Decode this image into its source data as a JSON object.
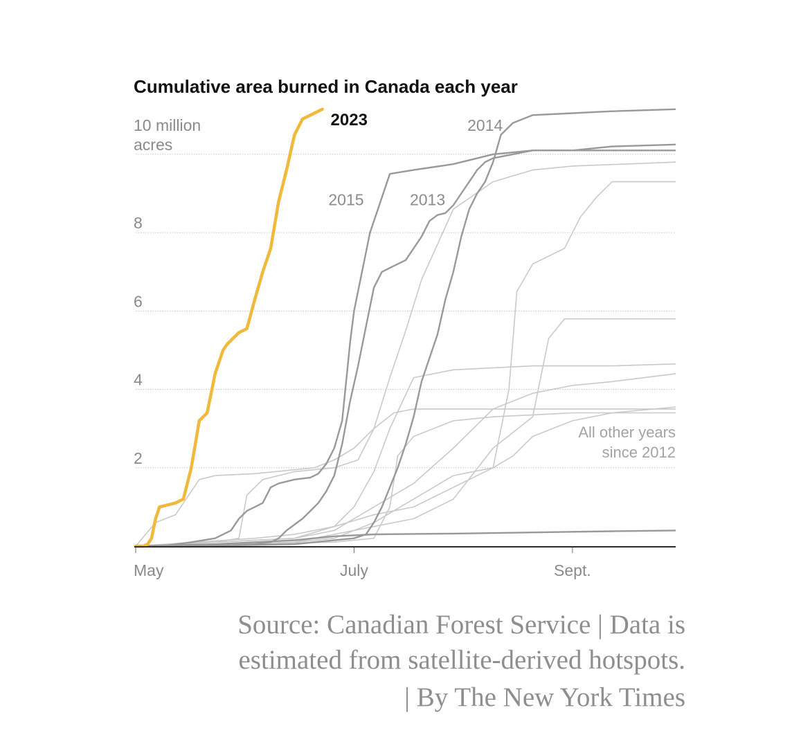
{
  "chart_data": {
    "type": "line",
    "title": "Cumulative area burned in Canada each year",
    "xlabel": "",
    "ylabel": "",
    "x_unit": "days since May 1",
    "xlim": [
      0,
      136
    ],
    "ylim": [
      0,
      11.2
    ],
    "y_ticks": [
      {
        "value": 10,
        "lines": [
          "10 million",
          "acres"
        ]
      },
      {
        "value": 8,
        "lines": [
          "8"
        ]
      },
      {
        "value": 6,
        "lines": [
          "6"
        ]
      },
      {
        "value": 4,
        "lines": [
          "4"
        ]
      },
      {
        "value": 2,
        "lines": [
          "2"
        ]
      }
    ],
    "x_ticks": [
      {
        "value": 0,
        "label": "May"
      },
      {
        "value": 55,
        "label": "July"
      },
      {
        "value": 110,
        "label": "Sept."
      }
    ],
    "highlight": {
      "name": "2023",
      "label": "2023",
      "color": "#f0b93b",
      "x": [
        0,
        2,
        3,
        4,
        5,
        6,
        8,
        10,
        12,
        14,
        16,
        18,
        20,
        22,
        23,
        24,
        26,
        28,
        30,
        32,
        34,
        36,
        38,
        40,
        42,
        44,
        46,
        47
      ],
      "y": [
        0,
        0,
        0.05,
        0.2,
        0.7,
        1.0,
        1.05,
        1.1,
        1.2,
        2.0,
        3.2,
        3.4,
        4.4,
        5.0,
        5.15,
        5.25,
        5.45,
        5.55,
        6.3,
        7.0,
        7.6,
        8.8,
        9.6,
        10.5,
        10.9,
        11.0,
        11.1,
        11.15
      ]
    },
    "labeled_years": [
      {
        "name": "2014",
        "label": "2014",
        "label_x": 88,
        "label_y": 10.6,
        "color": "#999999",
        "x": [
          0,
          20,
          40,
          50,
          55,
          58,
          60,
          62,
          64,
          66,
          68,
          70,
          72,
          74,
          76,
          78,
          80,
          82,
          84,
          86,
          88,
          90,
          92,
          95,
          100,
          110,
          120,
          136
        ],
        "y": [
          0,
          0.01,
          0.05,
          0.15,
          0.2,
          0.3,
          0.6,
          1.0,
          1.5,
          2.0,
          2.6,
          3.3,
          4.2,
          4.8,
          5.4,
          6.3,
          7.0,
          7.9,
          8.6,
          9.0,
          9.3,
          9.8,
          10.5,
          10.8,
          11.0,
          11.05,
          11.1,
          11.15
        ]
      },
      {
        "name": "2015",
        "label": "2015",
        "label_x": 53,
        "label_y": 8.7,
        "color": "#999999",
        "x": [
          0,
          8,
          14,
          20,
          24,
          26,
          28,
          30,
          32,
          34,
          36,
          40,
          44,
          46,
          48,
          50,
          52,
          53,
          54,
          55,
          57,
          59,
          61,
          64,
          70,
          80,
          90,
          100,
          110,
          120,
          136
        ],
        "y": [
          0,
          0.02,
          0.1,
          0.2,
          0.4,
          0.7,
          0.9,
          1.0,
          1.1,
          1.5,
          1.6,
          1.7,
          1.75,
          1.85,
          2.1,
          2.5,
          3.2,
          4.2,
          5.2,
          6.0,
          7.0,
          8.0,
          8.6,
          9.5,
          9.6,
          9.75,
          10.0,
          10.1,
          10.1,
          10.1,
          10.1
        ]
      },
      {
        "name": "2013",
        "label": "2013",
        "label_x": 73.5,
        "label_y": 8.7,
        "color": "#999999",
        "x": [
          0,
          20,
          30,
          34,
          36,
          38,
          40,
          42,
          44,
          46,
          48,
          50,
          52,
          54,
          56,
          58,
          60,
          62,
          64,
          66,
          68,
          70,
          72,
          74,
          76,
          78,
          80,
          82,
          84,
          86,
          88,
          90,
          95,
          100,
          110,
          120,
          136
        ],
        "y": [
          0,
          0.01,
          0.05,
          0.1,
          0.2,
          0.4,
          0.55,
          0.7,
          0.9,
          1.1,
          1.4,
          1.8,
          2.6,
          3.7,
          4.6,
          5.6,
          6.6,
          7.0,
          7.1,
          7.2,
          7.3,
          7.6,
          7.9,
          8.3,
          8.45,
          8.5,
          8.7,
          9.0,
          9.3,
          9.6,
          9.8,
          9.9,
          10.0,
          10.1,
          10.1,
          10.2,
          10.25
        ]
      },
      {
        "name": "flat-year",
        "label": "",
        "color": "#999999",
        "x": [
          0,
          20,
          40,
          50,
          60,
          80,
          100,
          120,
          136
        ],
        "y": [
          0,
          0.05,
          0.15,
          0.25,
          0.3,
          0.32,
          0.35,
          0.38,
          0.4
        ]
      }
    ],
    "other_years": {
      "label_lines": [
        "All other years",
        "since 2012"
      ],
      "color": "#c9c9c9",
      "series": [
        {
          "x": [
            0,
            5,
            10,
            14,
            16,
            20,
            30,
            45,
            50,
            55,
            60,
            65,
            70,
            80,
            90,
            100,
            110,
            136
          ],
          "y": [
            0,
            0.6,
            0.8,
            1.4,
            1.7,
            1.8,
            1.85,
            2.0,
            2.2,
            2.5,
            3.0,
            3.4,
            3.5,
            3.5,
            3.5,
            3.5,
            3.5,
            3.5
          ]
        },
        {
          "x": [
            0,
            20,
            26,
            28,
            32,
            40,
            50,
            56,
            60,
            64,
            68,
            72,
            76,
            80,
            90,
            100,
            110,
            136
          ],
          "y": [
            0,
            0.1,
            0.2,
            1.3,
            1.7,
            1.9,
            2.0,
            2.2,
            3.0,
            4.3,
            5.5,
            6.8,
            7.7,
            8.6,
            9.3,
            9.6,
            9.7,
            9.8
          ]
        },
        {
          "x": [
            0,
            30,
            40,
            50,
            60,
            70,
            80,
            90,
            94,
            96,
            100,
            108,
            112,
            116,
            120,
            136
          ],
          "y": [
            0,
            0.2,
            0.3,
            0.5,
            0.8,
            1.0,
            1.5,
            2.0,
            4.0,
            6.5,
            7.2,
            7.6,
            8.4,
            8.9,
            9.3,
            9.3
          ]
        },
        {
          "x": [
            0,
            40,
            50,
            60,
            70,
            80,
            90,
            100,
            104,
            108,
            120,
            136
          ],
          "y": [
            0,
            0.1,
            0.3,
            0.5,
            0.7,
            1.2,
            2.5,
            3.3,
            5.3,
            5.8,
            5.8,
            5.8
          ]
        },
        {
          "x": [
            0,
            40,
            50,
            55,
            60,
            64,
            70,
            80,
            90,
            100,
            120,
            136
          ],
          "y": [
            0,
            0.2,
            0.5,
            1.0,
            1.9,
            3.0,
            4.3,
            4.5,
            4.55,
            4.6,
            4.6,
            4.65
          ]
        },
        {
          "x": [
            0,
            40,
            50,
            60,
            70,
            80,
            90,
            100,
            110,
            120,
            136
          ],
          "y": [
            0,
            0.2,
            0.4,
            1.0,
            1.6,
            2.5,
            3.5,
            3.9,
            4.1,
            4.2,
            4.4
          ]
        },
        {
          "x": [
            0,
            40,
            50,
            60,
            70,
            80,
            90,
            95,
            100,
            110,
            120,
            136
          ],
          "y": [
            0,
            0.1,
            0.2,
            0.6,
            1.2,
            1.8,
            2.0,
            2.3,
            2.8,
            3.2,
            3.4,
            3.55
          ]
        },
        {
          "x": [
            0,
            50,
            60,
            64,
            66,
            70,
            80,
            90,
            100,
            110,
            120,
            136
          ],
          "y": [
            0,
            0.1,
            0.2,
            1.0,
            2.3,
            2.8,
            3.2,
            3.3,
            3.35,
            3.4,
            3.4,
            3.4
          ]
        }
      ]
    }
  },
  "footer": {
    "source_lines": [
      "Source: Canadian Forest Service | Data is",
      "estimated from satellite-derived hotspots.",
      "| By The New York Times"
    ]
  }
}
